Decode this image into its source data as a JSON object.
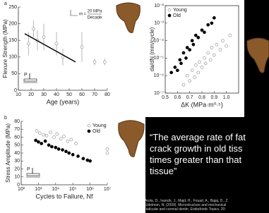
{
  "chart_data": [
    {
      "type": "scatter",
      "panel_label": "a",
      "xlabel": "Age (years)",
      "ylabel": "Flexure Strength (MPa)",
      "xlim": [
        10,
        80
      ],
      "xticks": [
        10,
        20,
        30,
        40,
        50,
        60,
        70,
        80
      ],
      "ylim": [
        0,
        250
      ],
      "yticks": [
        0,
        50,
        100,
        150,
        200,
        250
      ],
      "series": [
        {
          "color": "#999999",
          "marker": "open",
          "x": [
            18,
            22,
            25,
            30,
            40,
            45,
            60,
            70,
            78
          ],
          "values": [
            140,
            185,
            150,
            160,
            140,
            100,
            130,
            85,
            85
          ],
          "errors": [
            35,
            25,
            30,
            40,
            35,
            25,
            45,
            10,
            10
          ]
        }
      ],
      "trend": {
        "color": "#000000",
        "x": [
          15,
          55
        ],
        "values": [
          170,
          85
        ]
      },
      "annotation": {
        "prefix": "m =",
        "numerator": "20 MPa",
        "denominator": "Decade"
      },
      "inset_label": "P"
    },
    {
      "type": "scatter",
      "panel_label": "b",
      "xlabel": "Cycles to Failure, Nf",
      "ylabel": "Stress Amplitude (MPa)",
      "xlog": true,
      "xlim": [
        100,
        10000000
      ],
      "xticks": [
        {
          "value": 100,
          "label": "10²"
        },
        {
          "value": 1000,
          "label": "10³"
        },
        {
          "value": 10000,
          "label": "10⁴"
        },
        {
          "value": 100000,
          "label": "10⁵"
        },
        {
          "value": 1000000,
          "label": "10⁶"
        },
        {
          "value": 10000000,
          "label": "10⁷"
        }
      ],
      "ylim": [
        0,
        80
      ],
      "yticks": [
        0,
        10,
        20,
        30,
        40,
        50,
        60,
        70,
        80
      ],
      "legend": "upper right",
      "series": [
        {
          "name": "Young",
          "color": "#999999",
          "marker": "open",
          "x": [
            800,
            1200,
            2000,
            3000,
            5000,
            8000,
            12000,
            20000,
            30000,
            50000,
            80000,
            150000,
            10000000,
            10000000
          ],
          "values": [
            68,
            65,
            63,
            62,
            66,
            60,
            64,
            58,
            61,
            55,
            57,
            52,
            45,
            40
          ]
        },
        {
          "name": "Old",
          "color": "#000000",
          "marker": "filled",
          "x": [
            700,
            1000,
            1500,
            2500,
            4000,
            6000,
            10000,
            15000,
            25000,
            40000,
            60000,
            100000,
            200000,
            400000,
            700000,
            1000000
          ],
          "values": [
            56,
            54,
            52,
            55,
            50,
            48,
            47,
            45,
            44,
            42,
            40,
            38,
            36,
            33,
            31,
            30
          ]
        }
      ],
      "inset_label": "P"
    },
    {
      "type": "scatter",
      "xlabel": "ΔK (MPa·m⁰·⁵)",
      "ylabel": "da/dN (mm/cycle)",
      "xlim": [
        0.5,
        1.1
      ],
      "xticks": [
        0.5,
        0.6,
        0.7,
        0.8,
        0.9,
        {
          "value": 1,
          "label": "1.0"
        }
      ],
      "ylog": true,
      "ylim": [
        1e-07,
        0.01
      ],
      "yticks": [
        {
          "value": 1e-07,
          "label": "10⁻⁷"
        },
        {
          "value": 1e-06,
          "label": "10⁻⁶"
        },
        {
          "value": 1e-05,
          "label": "10⁻⁵"
        },
        {
          "value": 0.0001,
          "label": "10⁻⁴"
        },
        {
          "value": 0.001,
          "label": "10⁻³"
        },
        {
          "value": 0.01,
          "label": "10⁻²"
        }
      ],
      "legend": "upper left",
      "series": [
        {
          "name": "Young",
          "color": "#999999",
          "marker": "open",
          "x": [
            0.65,
            0.68,
            0.7,
            0.72,
            0.74,
            0.75,
            0.77,
            0.78,
            0.8,
            0.82,
            0.83,
            0.85,
            0.87,
            0.88,
            0.9,
            0.92,
            0.95,
            0.97,
            1.0,
            1.03
          ],
          "values": [
            3e-07,
            1e-06,
            5e-07,
            2e-06,
            8e-07,
            4e-06,
            1.5e-06,
            6e-06,
            3e-06,
            1e-05,
            5e-06,
            2e-05,
            8e-06,
            4e-05,
            1.5e-05,
            6e-05,
            3e-05,
            0.0001,
            5e-05,
            0.0002
          ]
        },
        {
          "name": "Old",
          "color": "#000000",
          "marker": "filled",
          "x": [
            0.55,
            0.58,
            0.6,
            0.62,
            0.63,
            0.65,
            0.67,
            0.68,
            0.7,
            0.72,
            0.73,
            0.75,
            0.77,
            0.8,
            0.82,
            0.85,
            0.88,
            0.9
          ],
          "values": [
            1.5e-06,
            3e-06,
            2e-06,
            8e-06,
            5e-06,
            2e-05,
            1e-05,
            4e-05,
            3e-05,
            0.0001,
            6e-05,
            0.0002,
            0.00015,
            0.0004,
            0.0003,
            0.0008,
            0.001,
            0.002
          ]
        }
      ]
    }
  ],
  "quote": [
    "“The average rate of fat",
    "crack growth in old tiss",
    "times greater than that",
    "tissue”"
  ],
  "citation": [
    "Arola, D., Ivancik, J., Majd, H., Fouad, A., Bajaj, D., Z",
    "Eidelman, N. (2009). Microstructure and mechanical",
    "radicular and coronal dentin. Endodontic Topics, 20:"
  ]
}
